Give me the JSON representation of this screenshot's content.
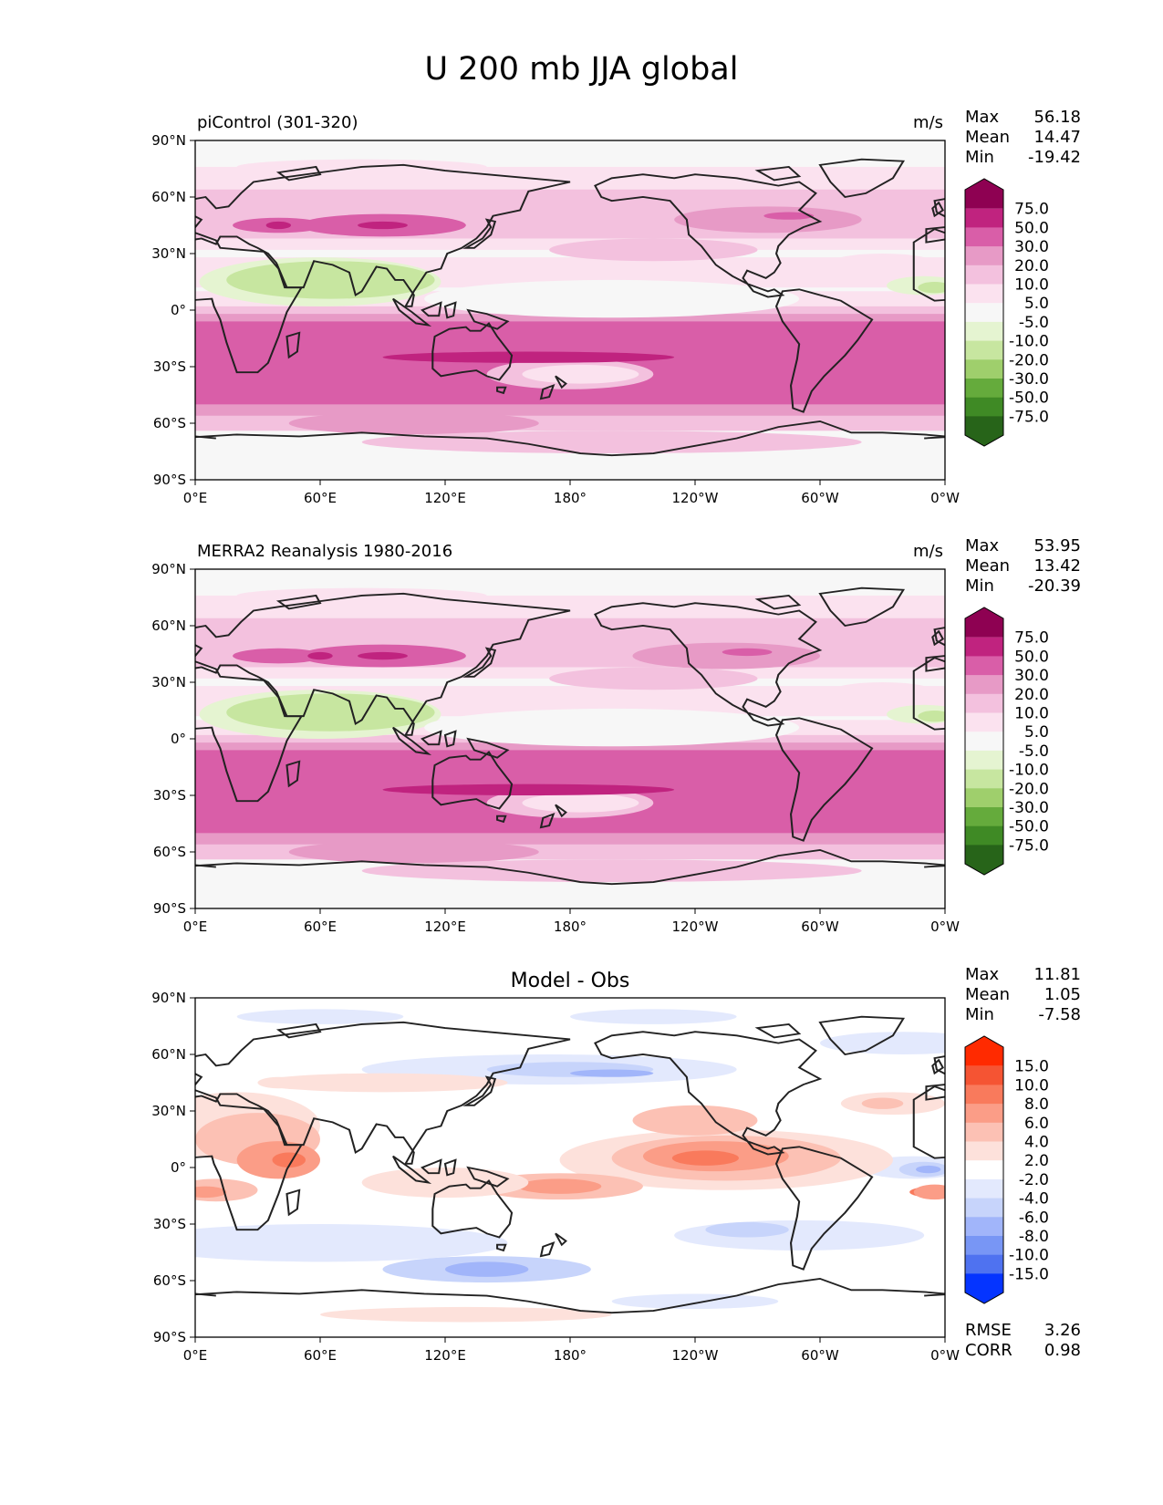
{
  "title": "U 200 mb JJA global",
  "lat_ticks": [
    "90°N",
    "60°N",
    "30°N",
    "0°",
    "30°S",
    "60°S",
    "90°S"
  ],
  "lon_ticks": [
    "0°E",
    "60°E",
    "120°E",
    "180°",
    "120°W",
    "60°W",
    "0°W"
  ],
  "colors": {
    "pink_scale": [
      "#276419",
      "#3f8a25",
      "#65ab3c",
      "#9fcf6c",
      "#c7e6a0",
      "#e5f4d1",
      "#f7f7f7",
      "#fbe2ef",
      "#f3c1de",
      "#e79ac6",
      "#d95ea8",
      "#c0237f",
      "#8e0152"
    ],
    "diff_scale": [
      "#0534ff",
      "#4f72f0",
      "#7896f5",
      "#a1b5fa",
      "#c7d4fb",
      "#e3e9fd",
      "#ffffff",
      "#fde1db",
      "#fcc1b4",
      "#fb9d87",
      "#f97a5c",
      "#f55433",
      "#ff2a00"
    ]
  },
  "panels": [
    {
      "title": "piControl (301-320)",
      "units": "m/s",
      "stats": [
        {
          "label": "Max",
          "value": "56.18"
        },
        {
          "label": "Mean",
          "value": "14.47"
        },
        {
          "label": "Min",
          "value": "-19.42"
        }
      ],
      "colorbar_levels": [
        "75.0",
        "50.0",
        "30.0",
        "20.0",
        "10.0",
        "5.0",
        "-5.0",
        "-10.0",
        "-20.0",
        "-30.0",
        "-50.0",
        "-75.0"
      ]
    },
    {
      "title": "MERRA2 Reanalysis 1980-2016",
      "units": "m/s",
      "stats": [
        {
          "label": "Max",
          "value": "53.95"
        },
        {
          "label": "Mean",
          "value": "13.42"
        },
        {
          "label": "Min",
          "value": "-20.39"
        }
      ],
      "colorbar_levels": [
        "75.0",
        "50.0",
        "30.0",
        "20.0",
        "10.0",
        "5.0",
        "-5.0",
        "-10.0",
        "-20.0",
        "-30.0",
        "-50.0",
        "-75.0"
      ]
    },
    {
      "title": "Model - Obs",
      "stats": [
        {
          "label": "Max",
          "value": "11.81"
        },
        {
          "label": "Mean",
          "value": "1.05"
        },
        {
          "label": "Min",
          "value": "-7.58"
        }
      ],
      "colorbar_levels": [
        "15.0",
        "10.0",
        "8.0",
        "6.0",
        "4.0",
        "2.0",
        "-2.0",
        "-4.0",
        "-6.0",
        "-8.0",
        "-10.0",
        "-15.0"
      ],
      "metrics": [
        {
          "label": "RMSE",
          "value": "3.26"
        },
        {
          "label": "CORR",
          "value": "0.98"
        }
      ]
    }
  ]
}
